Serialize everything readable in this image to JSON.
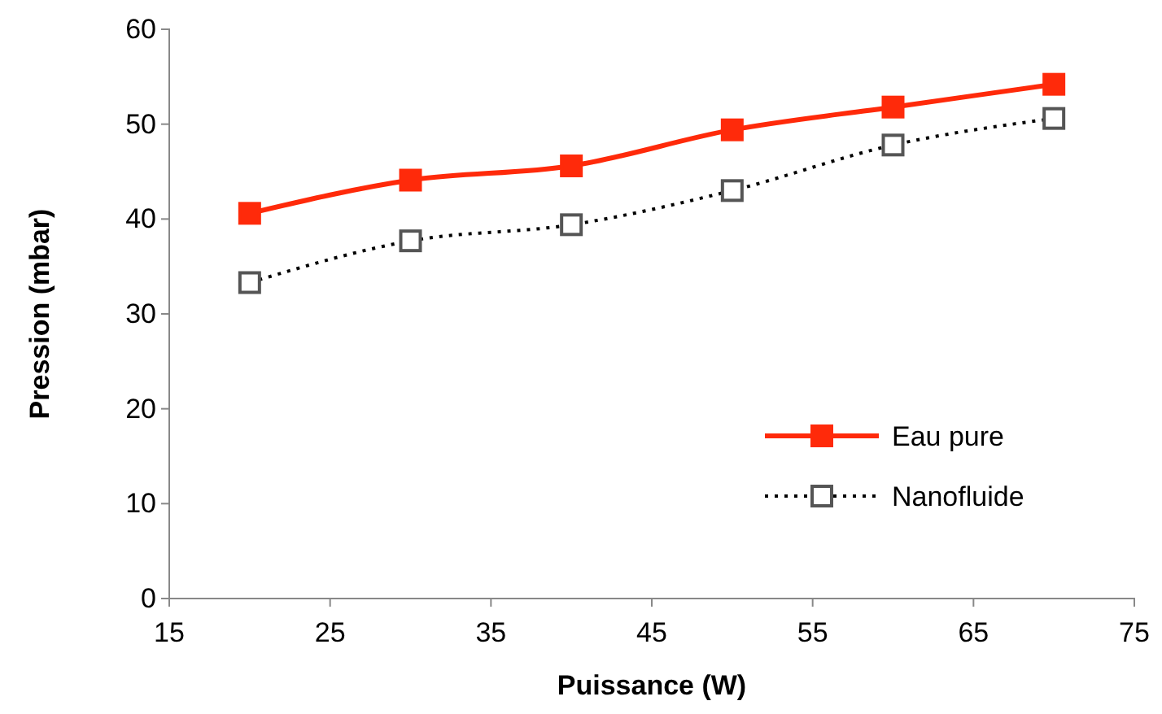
{
  "chart_data": {
    "type": "line",
    "xlabel": "Puissance (W)",
    "ylabel": "Pression  (mbar)",
    "x": [
      20,
      30,
      40,
      50,
      60,
      70
    ],
    "series": [
      {
        "name": "Eau pure",
        "color": "#ff2a0a",
        "values": [
          40.6,
          44.1,
          45.6,
          49.4,
          51.8,
          54.2
        ],
        "marker": "square",
        "line_style": "solid"
      },
      {
        "name": "Nanofluide",
        "color": "#000000",
        "values": [
          33.3,
          37.7,
          39.4,
          43.0,
          47.8,
          50.6
        ],
        "marker": "square",
        "line_style": "dotted"
      }
    ],
    "xlim": [
      15,
      75
    ],
    "xticks": [
      15,
      25,
      35,
      45,
      55,
      65,
      75
    ],
    "ylim": [
      0,
      60
    ],
    "yticks": [
      0,
      10,
      20,
      30,
      40,
      50,
      60
    ],
    "grid": false,
    "legend": "bottom right"
  }
}
